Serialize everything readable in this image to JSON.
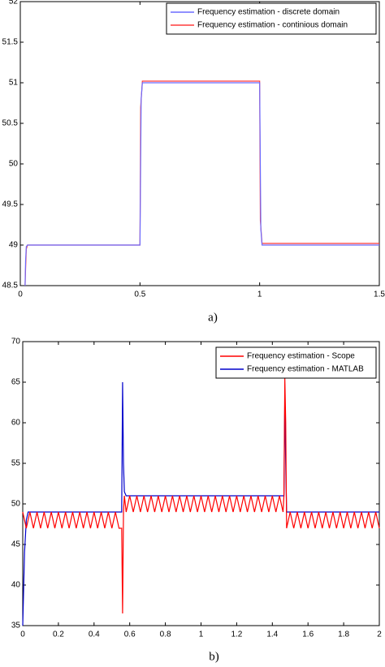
{
  "chart_data": [
    {
      "type": "line",
      "caption": "a)",
      "xlim": [
        0,
        1.5
      ],
      "xticks": [
        0,
        0.5,
        1,
        1.5
      ],
      "ylim": [
        48.5,
        52
      ],
      "yticks": [
        48.5,
        49,
        49.5,
        50,
        50.5,
        51,
        51.5,
        52
      ],
      "legend": "upper right",
      "series": [
        {
          "name": "Frequency estimation  - discrete domain",
          "color": "#6b6bff",
          "x": [
            0.02,
            0.022,
            0.025,
            0.03,
            0.5,
            0.505,
            0.51,
            1.0,
            1.005,
            1.01,
            1.5
          ],
          "values": [
            48.5,
            48.8,
            48.98,
            49,
            49,
            50.8,
            51,
            51,
            49.2,
            49,
            49
          ]
        },
        {
          "name": "Frequency estimation - continious domain",
          "color": "#ff3b3b",
          "x": [
            0.02,
            0.022,
            0.025,
            0.03,
            0.5,
            0.503,
            0.51,
            1.0,
            1.003,
            1.01,
            1.5
          ],
          "values": [
            48.5,
            48.7,
            48.95,
            49,
            49,
            50.7,
            51.02,
            51.02,
            49.3,
            49.02,
            49.02
          ]
        }
      ]
    },
    {
      "type": "line",
      "caption": "b)",
      "xlim": [
        0,
        2
      ],
      "xticks": [
        0,
        0.2,
        0.4,
        0.6,
        0.8,
        1,
        1.2,
        1.4,
        1.6,
        1.8,
        2
      ],
      "ylim": [
        35,
        70
      ],
      "yticks": [
        35,
        40,
        45,
        50,
        55,
        60,
        65,
        70
      ],
      "legend": "upper right",
      "series": [
        {
          "name": "Frequency estimation - Scope",
          "color": "#ff0000",
          "x": [
            0,
            0.02,
            0.04,
            0.06,
            0.08,
            0.1,
            0.12,
            0.14,
            0.16,
            0.18,
            0.2,
            0.22,
            0.24,
            0.26,
            0.28,
            0.3,
            0.32,
            0.34,
            0.36,
            0.38,
            0.4,
            0.42,
            0.44,
            0.46,
            0.48,
            0.5,
            0.52,
            0.54,
            0.555,
            0.56,
            0.565,
            0.57,
            0.58,
            0.6,
            0.62,
            0.64,
            0.66,
            0.68,
            0.7,
            0.72,
            0.74,
            0.76,
            0.78,
            0.8,
            0.82,
            0.84,
            0.86,
            0.88,
            0.9,
            0.92,
            0.94,
            0.96,
            0.98,
            1,
            1.02,
            1.04,
            1.06,
            1.08,
            1.1,
            1.12,
            1.14,
            1.16,
            1.18,
            1.2,
            1.22,
            1.24,
            1.26,
            1.28,
            1.3,
            1.32,
            1.34,
            1.36,
            1.38,
            1.4,
            1.42,
            1.44,
            1.46,
            1.465,
            1.47,
            1.475,
            1.48,
            1.5,
            1.52,
            1.54,
            1.56,
            1.58,
            1.6,
            1.62,
            1.64,
            1.66,
            1.68,
            1.7,
            1.72,
            1.74,
            1.76,
            1.78,
            1.8,
            1.82,
            1.84,
            1.86,
            1.88,
            1.9,
            1.92,
            1.94,
            1.96,
            1.98,
            2
          ],
          "values": [
            49,
            47,
            49,
            47,
            49,
            47,
            49,
            47,
            49,
            47,
            49,
            47,
            49,
            47,
            49,
            47,
            49,
            47,
            49,
            47,
            49,
            47,
            49,
            47,
            49,
            47,
            49,
            47,
            47,
            36.5,
            49,
            51,
            49,
            51,
            49,
            51,
            49,
            51,
            49,
            51,
            49,
            51,
            49,
            51,
            49,
            51,
            49,
            51,
            49,
            51,
            49,
            51,
            49,
            51,
            49,
            51,
            49,
            51,
            49,
            51,
            49,
            51,
            49,
            51,
            49,
            51,
            49,
            51,
            49,
            51,
            49,
            51,
            49,
            51,
            49,
            51,
            49,
            51,
            65.5,
            60,
            47,
            49,
            47,
            49,
            47,
            49,
            47,
            49,
            47,
            49,
            47,
            49,
            47,
            49,
            47,
            49,
            47,
            49,
            47,
            49,
            47,
            49,
            47,
            49,
            47,
            49,
            47
          ]
        },
        {
          "name": "Frequency estimation - MATLAB",
          "color": "#0000cc",
          "x": [
            0,
            0.01,
            0.02,
            0.03,
            0.55,
            0.555,
            0.56,
            0.565,
            0.57,
            0.58,
            1.46,
            1.465,
            1.47,
            1.475,
            1.48,
            1.49,
            2
          ],
          "values": [
            35,
            44,
            48,
            49,
            49,
            49,
            65,
            55,
            51.5,
            51,
            51,
            51,
            63,
            55,
            49,
            49,
            49
          ]
        }
      ]
    }
  ]
}
